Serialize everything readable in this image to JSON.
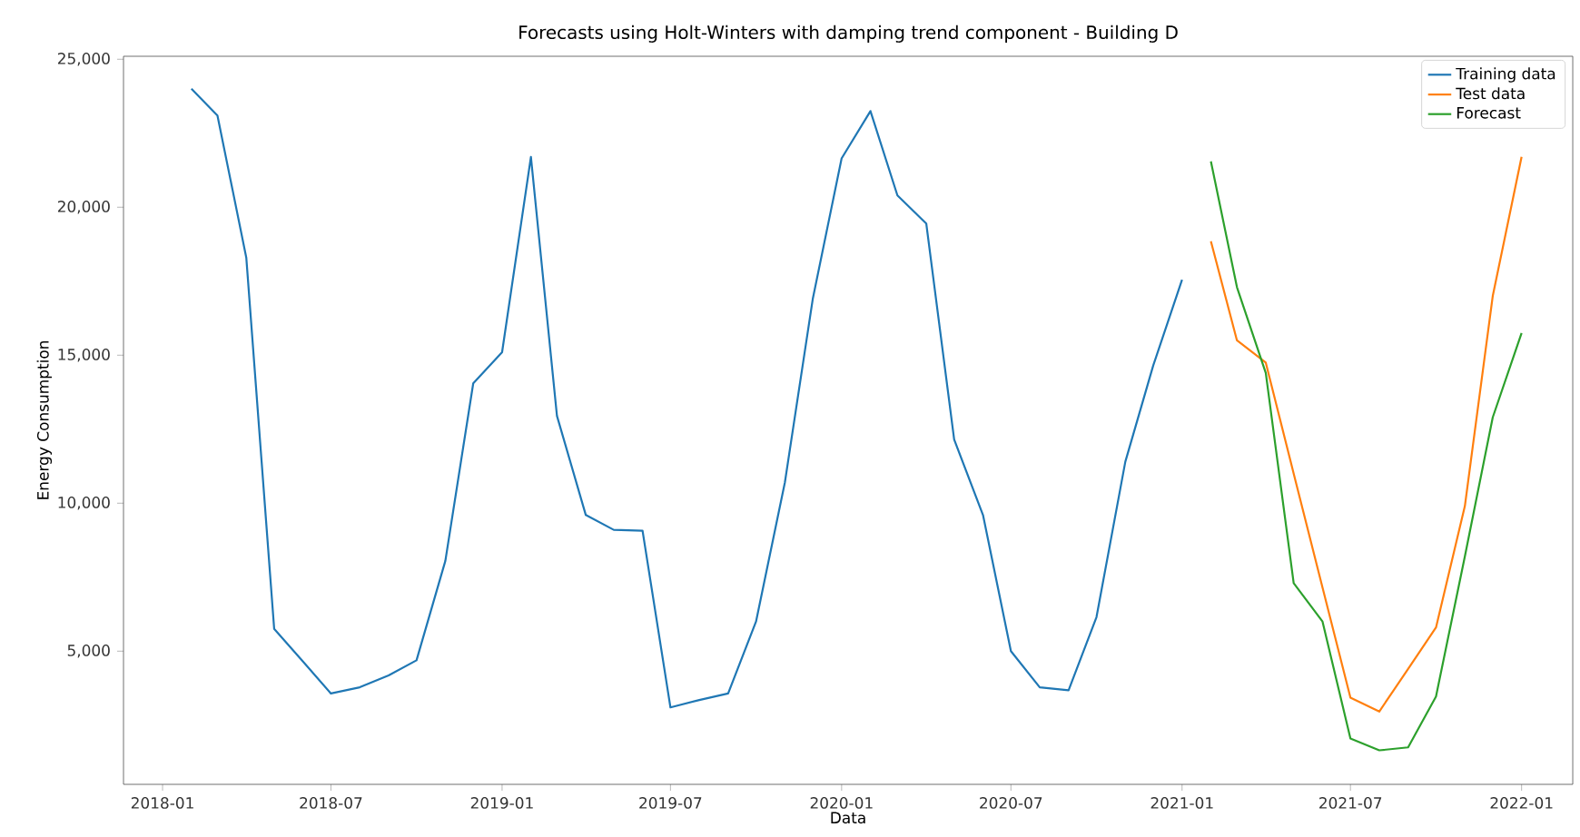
{
  "chart_data": {
    "type": "line",
    "title": "Forecasts using Holt-Winters with damping trend component - Building D",
    "xlabel": "Data",
    "ylabel": "Energy Consumption",
    "xlim": [
      "2017-11-20",
      "2022-02-25"
    ],
    "ylim": [
      500,
      25100
    ],
    "xticks": [
      "2018-01",
      "2018-07",
      "2019-01",
      "2019-07",
      "2020-01",
      "2020-07",
      "2021-01",
      "2021-07",
      "2022-01"
    ],
    "yticks": [
      {
        "value": 5000,
        "label": "5,000"
      },
      {
        "value": 10000,
        "label": "10,000"
      },
      {
        "value": 15000,
        "label": "15,000"
      },
      {
        "value": 20000,
        "label": "20,000"
      },
      {
        "value": 25000,
        "label": "25,000"
      }
    ],
    "legend": "top right",
    "grid": false,
    "series": [
      {
        "name": "Training data",
        "color": "#1f77b4",
        "x": [
          "2018-02",
          "2018-03",
          "2018-04",
          "2018-05",
          "2018-06",
          "2018-07",
          "2018-08",
          "2018-09",
          "2018-10",
          "2018-11",
          "2018-12",
          "2019-01",
          "2019-02",
          "2019-03",
          "2019-04",
          "2019-05",
          "2019-06",
          "2019-07",
          "2019-08",
          "2019-09",
          "2019-10",
          "2019-11",
          "2019-12",
          "2020-01",
          "2020-02",
          "2020-03",
          "2020-04",
          "2020-05",
          "2020-06",
          "2020-07",
          "2020-08",
          "2020-09",
          "2020-10",
          "2020-11",
          "2020-12",
          "2021-01"
        ],
        "values": [
          24000,
          23100,
          18300,
          5750,
          4650,
          3570,
          3780,
          4180,
          4690,
          8050,
          14050,
          15100,
          21700,
          12950,
          9600,
          9100,
          9070,
          3100,
          3350,
          3570,
          6000,
          10700,
          16900,
          21650,
          23250,
          20400,
          19450,
          12150,
          9600,
          5000,
          3780,
          3680,
          6150,
          11400,
          14650,
          17550
        ]
      },
      {
        "name": "Test data",
        "color": "#ff7f0e",
        "x": [
          "2021-02",
          "2021-03",
          "2021-04",
          "2021-05",
          "2021-06",
          "2021-07",
          "2021-08",
          "2021-09",
          "2021-10",
          "2021-11",
          "2021-12",
          "2022-01"
        ],
        "values": [
          18850,
          15500,
          14750,
          11000,
          7150,
          3430,
          2960,
          4400,
          5800,
          9900,
          17000,
          21700
        ]
      },
      {
        "name": "Forecast",
        "color": "#2ca02c",
        "x": [
          "2021-02",
          "2021-03",
          "2021-04",
          "2021-05",
          "2021-06",
          "2021-07",
          "2021-08",
          "2021-09",
          "2021-10",
          "2021-11",
          "2021-12",
          "2022-01"
        ],
        "values": [
          21550,
          17300,
          14400,
          7300,
          6000,
          2050,
          1650,
          1750,
          3470,
          8200,
          12900,
          15750
        ]
      }
    ]
  }
}
